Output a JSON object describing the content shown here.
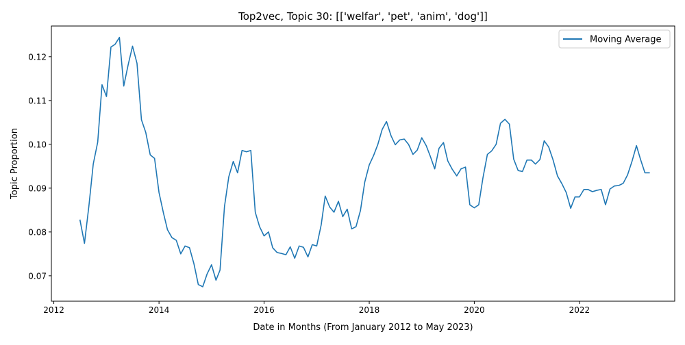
{
  "chart_data": {
    "type": "line",
    "title": "Top2vec, Topic 30: [['welfar', 'pet', 'anim', 'dog']]",
    "xlabel": "Date in Months (From January 2012 to May 2023)",
    "ylabel": "Topic Proportion",
    "xlim": [
      "2011-12-15",
      "2023-10-25"
    ],
    "ylim": [
      0.0642,
      0.127
    ],
    "x_ticks": [
      "2012",
      "2014",
      "2016",
      "2018",
      "2020",
      "2022"
    ],
    "y_ticks": [
      "0.07",
      "0.08",
      "0.09",
      "0.10",
      "0.11",
      "0.12"
    ],
    "grid": false,
    "legend": {
      "position": "top-right",
      "entries": [
        "Moving Average"
      ]
    },
    "series": [
      {
        "name": "Moving Average",
        "color": "#1f77b4",
        "points": [
          [
            "2012-07",
            0.0827
          ],
          [
            "2012-08",
            0.0774
          ],
          [
            "2012-09",
            0.086
          ],
          [
            "2012-10",
            0.0955
          ],
          [
            "2012-11",
            0.1005
          ],
          [
            "2012-12",
            0.1136
          ],
          [
            "2013-01",
            0.1109
          ],
          [
            "2013-02",
            0.1222
          ],
          [
            "2013-03",
            0.1228
          ],
          [
            "2013-04",
            0.1244
          ],
          [
            "2013-05",
            0.1133
          ],
          [
            "2013-06",
            0.1182
          ],
          [
            "2013-07",
            0.1224
          ],
          [
            "2013-08",
            0.1185
          ],
          [
            "2013-09",
            0.1056
          ],
          [
            "2013-10",
            0.1027
          ],
          [
            "2013-11",
            0.0976
          ],
          [
            "2013-12",
            0.0968
          ],
          [
            "2014-01",
            0.089
          ],
          [
            "2014-02",
            0.0843
          ],
          [
            "2014-03",
            0.0805
          ],
          [
            "2014-04",
            0.0787
          ],
          [
            "2014-05",
            0.0781
          ],
          [
            "2014-06",
            0.075
          ],
          [
            "2014-07",
            0.0768
          ],
          [
            "2014-08",
            0.0764
          ],
          [
            "2014-09",
            0.0727
          ],
          [
            "2014-10",
            0.068
          ],
          [
            "2014-11",
            0.0675
          ],
          [
            "2014-12",
            0.0704
          ],
          [
            "2015-01",
            0.0725
          ],
          [
            "2015-02",
            0.069
          ],
          [
            "2015-03",
            0.0713
          ],
          [
            "2015-04",
            0.0858
          ],
          [
            "2015-05",
            0.0926
          ],
          [
            "2015-06",
            0.0961
          ],
          [
            "2015-07",
            0.0935
          ],
          [
            "2015-08",
            0.0986
          ],
          [
            "2015-09",
            0.0983
          ],
          [
            "2015-10",
            0.0986
          ],
          [
            "2015-11",
            0.0845
          ],
          [
            "2015-12",
            0.0812
          ],
          [
            "2016-01",
            0.0791
          ],
          [
            "2016-02",
            0.08
          ],
          [
            "2016-03",
            0.0764
          ],
          [
            "2016-04",
            0.0753
          ],
          [
            "2016-05",
            0.0751
          ],
          [
            "2016-06",
            0.0748
          ],
          [
            "2016-07",
            0.0766
          ],
          [
            "2016-08",
            0.074
          ],
          [
            "2016-09",
            0.0768
          ],
          [
            "2016-10",
            0.0765
          ],
          [
            "2016-11",
            0.0743
          ],
          [
            "2016-12",
            0.0771
          ],
          [
            "2017-01",
            0.0768
          ],
          [
            "2017-02",
            0.0816
          ],
          [
            "2017-03",
            0.0882
          ],
          [
            "2017-04",
            0.0857
          ],
          [
            "2017-05",
            0.0845
          ],
          [
            "2017-06",
            0.087
          ],
          [
            "2017-07",
            0.0835
          ],
          [
            "2017-08",
            0.0852
          ],
          [
            "2017-09",
            0.0807
          ],
          [
            "2017-10",
            0.0812
          ],
          [
            "2017-11",
            0.0849
          ],
          [
            "2017-12",
            0.0914
          ],
          [
            "2018-01",
            0.0953
          ],
          [
            "2018-02",
            0.0975
          ],
          [
            "2018-03",
            0.0999
          ],
          [
            "2018-04",
            0.1034
          ],
          [
            "2018-05",
            0.1052
          ],
          [
            "2018-06",
            0.102
          ],
          [
            "2018-07",
            0.0999
          ],
          [
            "2018-08",
            0.101
          ],
          [
            "2018-09",
            0.1012
          ],
          [
            "2018-10",
            0.1
          ],
          [
            "2018-11",
            0.0977
          ],
          [
            "2018-12",
            0.0987
          ],
          [
            "2019-01",
            0.1015
          ],
          [
            "2019-02",
            0.0997
          ],
          [
            "2019-03",
            0.0973
          ],
          [
            "2019-04",
            0.0944
          ],
          [
            "2019-05",
            0.0991
          ],
          [
            "2019-06",
            0.1004
          ],
          [
            "2019-07",
            0.0962
          ],
          [
            "2019-08",
            0.0943
          ],
          [
            "2019-09",
            0.0928
          ],
          [
            "2019-10",
            0.0944
          ],
          [
            "2019-11",
            0.0948
          ],
          [
            "2019-12",
            0.0862
          ],
          [
            "2020-01",
            0.0855
          ],
          [
            "2020-02",
            0.0862
          ],
          [
            "2020-03",
            0.0923
          ],
          [
            "2020-04",
            0.0977
          ],
          [
            "2020-05",
            0.0985
          ],
          [
            "2020-06",
            0.1
          ],
          [
            "2020-07",
            0.1048
          ],
          [
            "2020-08",
            0.1057
          ],
          [
            "2020-09",
            0.1046
          ],
          [
            "2020-10",
            0.0966
          ],
          [
            "2020-11",
            0.094
          ],
          [
            "2020-12",
            0.0938
          ],
          [
            "2021-01",
            0.0964
          ],
          [
            "2021-02",
            0.0964
          ],
          [
            "2021-03",
            0.0955
          ],
          [
            "2021-04",
            0.0965
          ],
          [
            "2021-05",
            0.1008
          ],
          [
            "2021-06",
            0.0994
          ],
          [
            "2021-07",
            0.0965
          ],
          [
            "2021-08",
            0.0928
          ],
          [
            "2021-09",
            0.091
          ],
          [
            "2021-10",
            0.089
          ],
          [
            "2021-11",
            0.0854
          ],
          [
            "2021-12",
            0.088
          ],
          [
            "2022-01",
            0.088
          ],
          [
            "2022-02",
            0.0897
          ],
          [
            "2022-03",
            0.0897
          ],
          [
            "2022-04",
            0.0892
          ],
          [
            "2022-05",
            0.0895
          ],
          [
            "2022-06",
            0.0897
          ],
          [
            "2022-07",
            0.0862
          ],
          [
            "2022-08",
            0.0898
          ],
          [
            "2022-09",
            0.0905
          ],
          [
            "2022-10",
            0.0906
          ],
          [
            "2022-11",
            0.0911
          ],
          [
            "2022-12",
            0.093
          ],
          [
            "2023-01",
            0.0961
          ],
          [
            "2023-02",
            0.0997
          ],
          [
            "2023-03",
            0.0966
          ],
          [
            "2023-04",
            0.0935
          ],
          [
            "2023-05",
            0.0935
          ]
        ]
      }
    ]
  }
}
